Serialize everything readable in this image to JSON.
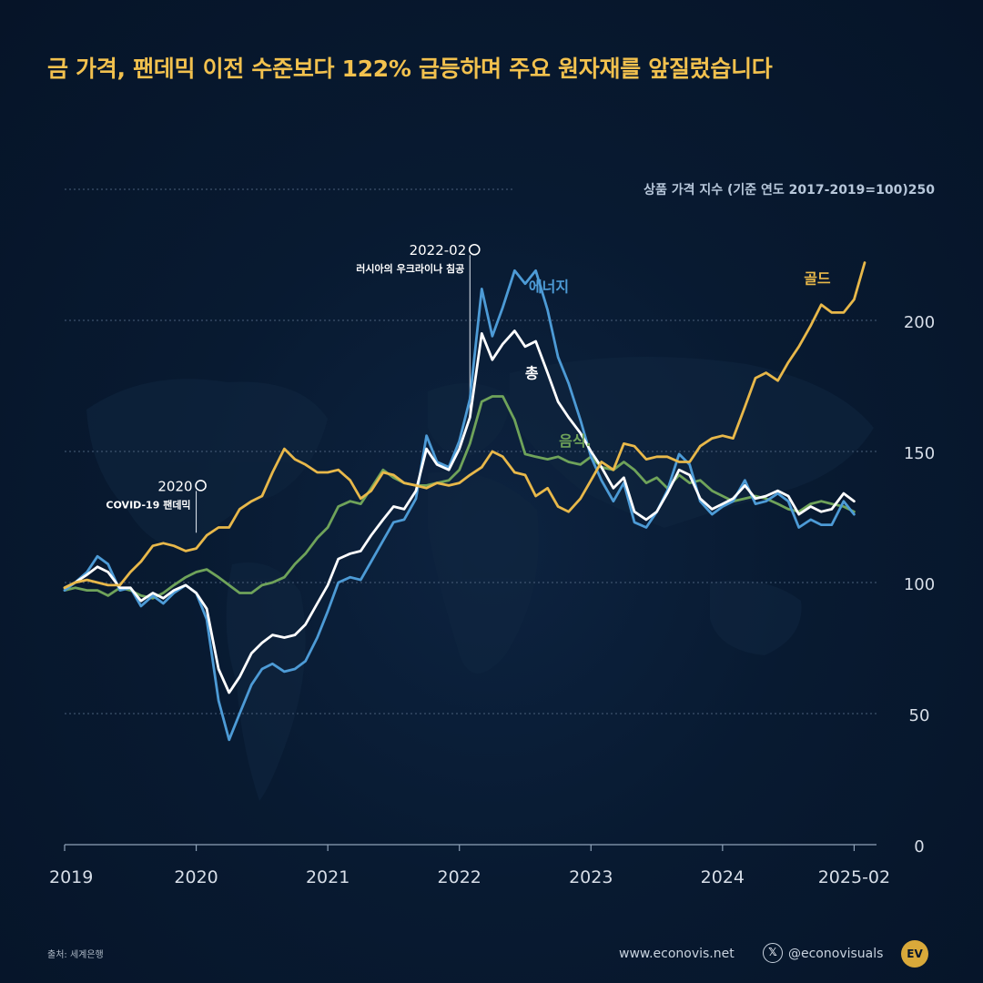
{
  "title": "금 가격, 팬데믹 이전 수준보다 122% 급등하며 주요 원자재를 앞질렀습니다",
  "footer": {
    "source": "출처: 세계은행",
    "website": "www.econovis.net",
    "handle": "@econovisuals",
    "logo_text": "EV",
    "x_icon": "x-logo-icon"
  },
  "chart_data": {
    "type": "line",
    "ylabel": "상품 가격 지수 (기준 연도 2017-2019=100)",
    "y_top_label": "250",
    "ylim": [
      0,
      250
    ],
    "yticks": [
      0,
      50,
      100,
      150,
      200
    ],
    "xlim": [
      2019.0,
      2025.17
    ],
    "xticks": [
      2019,
      2020,
      2021,
      2022,
      2023,
      2024
    ],
    "xtick_labels": [
      "2019",
      "2020",
      "2021",
      "2022",
      "2023",
      "2024",
      "2025-02"
    ],
    "xtick_values": [
      2019,
      2020,
      2021,
      2022,
      2023,
      2024,
      2025
    ],
    "grid": true,
    "colors": {
      "gold": "#e8b84a",
      "energy": "#4d9bd6",
      "total": "#ffffff",
      "food": "#6fa35a",
      "grid": "#4a5f7a",
      "axis_text": "#d7dee8"
    },
    "annotations": [
      {
        "x": 2020.0,
        "year_label": "2020",
        "text": "COVID-19 팬데믹",
        "y_text_top": 137
      },
      {
        "x": 2022.08,
        "year_label": "2022-02",
        "text": "러시아의 우크라이나 침공",
        "y_text_top": 227
      }
    ],
    "series": [
      {
        "key": "gold",
        "name": "골드",
        "label_x": 2024.72,
        "label_y": 214,
        "points": [
          [
            2019.0,
            98
          ],
          [
            2019.08,
            100
          ],
          [
            2019.17,
            101
          ],
          [
            2019.25,
            100
          ],
          [
            2019.33,
            99
          ],
          [
            2019.42,
            99
          ],
          [
            2019.5,
            104
          ],
          [
            2019.58,
            108
          ],
          [
            2019.67,
            114
          ],
          [
            2019.75,
            115
          ],
          [
            2019.83,
            114
          ],
          [
            2019.92,
            112
          ],
          [
            2020.0,
            113
          ],
          [
            2020.08,
            118
          ],
          [
            2020.17,
            121
          ],
          [
            2020.25,
            121
          ],
          [
            2020.33,
            128
          ],
          [
            2020.42,
            131
          ],
          [
            2020.5,
            133
          ],
          [
            2020.58,
            142
          ],
          [
            2020.67,
            151
          ],
          [
            2020.75,
            147
          ],
          [
            2020.83,
            145
          ],
          [
            2020.92,
            142
          ],
          [
            2021.0,
            142
          ],
          [
            2021.08,
            143
          ],
          [
            2021.17,
            139
          ],
          [
            2021.25,
            132
          ],
          [
            2021.33,
            135
          ],
          [
            2021.42,
            142
          ],
          [
            2021.5,
            141
          ],
          [
            2021.58,
            138
          ],
          [
            2021.67,
            137
          ],
          [
            2021.75,
            136
          ],
          [
            2021.83,
            138
          ],
          [
            2021.92,
            137
          ],
          [
            2022.0,
            138
          ],
          [
            2022.08,
            141
          ],
          [
            2022.17,
            144
          ],
          [
            2022.25,
            150
          ],
          [
            2022.33,
            148
          ],
          [
            2022.42,
            142
          ],
          [
            2022.5,
            141
          ],
          [
            2022.58,
            133
          ],
          [
            2022.67,
            136
          ],
          [
            2022.75,
            129
          ],
          [
            2022.83,
            127
          ],
          [
            2022.92,
            132
          ],
          [
            2023.0,
            139
          ],
          [
            2023.08,
            146
          ],
          [
            2023.17,
            143
          ],
          [
            2023.25,
            153
          ],
          [
            2023.33,
            152
          ],
          [
            2023.42,
            147
          ],
          [
            2023.5,
            148
          ],
          [
            2023.58,
            148
          ],
          [
            2023.67,
            146
          ],
          [
            2023.75,
            146
          ],
          [
            2023.83,
            152
          ],
          [
            2023.92,
            155
          ],
          [
            2024.0,
            156
          ],
          [
            2024.08,
            155
          ],
          [
            2024.17,
            167
          ],
          [
            2024.25,
            178
          ],
          [
            2024.33,
            180
          ],
          [
            2024.42,
            177
          ],
          [
            2024.5,
            184
          ],
          [
            2024.58,
            190
          ],
          [
            2024.67,
            198
          ],
          [
            2024.75,
            206
          ],
          [
            2024.83,
            203
          ],
          [
            2024.92,
            203
          ],
          [
            2025.0,
            208
          ],
          [
            2025.08,
            222
          ]
        ]
      },
      {
        "key": "energy",
        "name": "에너지",
        "label_x": 2022.68,
        "label_y": 211,
        "points": [
          [
            2019.0,
            97
          ],
          [
            2019.08,
            100
          ],
          [
            2019.17,
            104
          ],
          [
            2019.25,
            110
          ],
          [
            2019.33,
            107
          ],
          [
            2019.42,
            97
          ],
          [
            2019.5,
            98
          ],
          [
            2019.58,
            91
          ],
          [
            2019.67,
            95
          ],
          [
            2019.75,
            92
          ],
          [
            2019.83,
            96
          ],
          [
            2019.92,
            99
          ],
          [
            2020.0,
            96
          ],
          [
            2020.08,
            86
          ],
          [
            2020.17,
            55
          ],
          [
            2020.25,
            40
          ],
          [
            2020.33,
            50
          ],
          [
            2020.42,
            61
          ],
          [
            2020.5,
            67
          ],
          [
            2020.58,
            69
          ],
          [
            2020.67,
            66
          ],
          [
            2020.75,
            67
          ],
          [
            2020.83,
            70
          ],
          [
            2020.92,
            79
          ],
          [
            2021.0,
            89
          ],
          [
            2021.08,
            100
          ],
          [
            2021.17,
            102
          ],
          [
            2021.25,
            101
          ],
          [
            2021.33,
            108
          ],
          [
            2021.42,
            116
          ],
          [
            2021.5,
            123
          ],
          [
            2021.58,
            124
          ],
          [
            2021.67,
            132
          ],
          [
            2021.75,
            156
          ],
          [
            2021.83,
            146
          ],
          [
            2021.92,
            144
          ],
          [
            2022.0,
            154
          ],
          [
            2022.08,
            170
          ],
          [
            2022.17,
            212
          ],
          [
            2022.25,
            194
          ],
          [
            2022.33,
            205
          ],
          [
            2022.42,
            219
          ],
          [
            2022.5,
            214
          ],
          [
            2022.58,
            219
          ],
          [
            2022.67,
            204
          ],
          [
            2022.75,
            186
          ],
          [
            2022.83,
            176
          ],
          [
            2022.92,
            162
          ],
          [
            2023.0,
            148
          ],
          [
            2023.08,
            139
          ],
          [
            2023.17,
            131
          ],
          [
            2023.25,
            138
          ],
          [
            2023.33,
            123
          ],
          [
            2023.42,
            121
          ],
          [
            2023.5,
            127
          ],
          [
            2023.58,
            135
          ],
          [
            2023.67,
            149
          ],
          [
            2023.75,
            145
          ],
          [
            2023.83,
            131
          ],
          [
            2023.92,
            126
          ],
          [
            2024.0,
            129
          ],
          [
            2024.08,
            131
          ],
          [
            2024.17,
            139
          ],
          [
            2024.25,
            130
          ],
          [
            2024.33,
            131
          ],
          [
            2024.42,
            134
          ],
          [
            2024.5,
            131
          ],
          [
            2024.58,
            121
          ],
          [
            2024.67,
            124
          ],
          [
            2024.75,
            122
          ],
          [
            2024.83,
            122
          ],
          [
            2024.92,
            131
          ],
          [
            2025.0,
            126
          ]
        ]
      },
      {
        "key": "total",
        "name": "총",
        "label_x": 2022.55,
        "label_y": 178,
        "points": [
          [
            2019.0,
            98
          ],
          [
            2019.08,
            100
          ],
          [
            2019.17,
            103
          ],
          [
            2019.25,
            106
          ],
          [
            2019.33,
            104
          ],
          [
            2019.42,
            98
          ],
          [
            2019.5,
            98
          ],
          [
            2019.58,
            93
          ],
          [
            2019.67,
            96
          ],
          [
            2019.75,
            94
          ],
          [
            2019.83,
            97
          ],
          [
            2019.92,
            99
          ],
          [
            2020.0,
            96
          ],
          [
            2020.08,
            90
          ],
          [
            2020.17,
            67
          ],
          [
            2020.25,
            58
          ],
          [
            2020.33,
            64
          ],
          [
            2020.42,
            73
          ],
          [
            2020.5,
            77
          ],
          [
            2020.58,
            80
          ],
          [
            2020.67,
            79
          ],
          [
            2020.75,
            80
          ],
          [
            2020.83,
            84
          ],
          [
            2020.92,
            92
          ],
          [
            2021.0,
            99
          ],
          [
            2021.08,
            109
          ],
          [
            2021.17,
            111
          ],
          [
            2021.25,
            112
          ],
          [
            2021.33,
            118
          ],
          [
            2021.42,
            124
          ],
          [
            2021.5,
            129
          ],
          [
            2021.58,
            128
          ],
          [
            2021.67,
            135
          ],
          [
            2021.75,
            151
          ],
          [
            2021.83,
            145
          ],
          [
            2021.92,
            143
          ],
          [
            2022.0,
            151
          ],
          [
            2022.08,
            163
          ],
          [
            2022.17,
            195
          ],
          [
            2022.25,
            185
          ],
          [
            2022.33,
            191
          ],
          [
            2022.42,
            196
          ],
          [
            2022.5,
            190
          ],
          [
            2022.58,
            192
          ],
          [
            2022.67,
            180
          ],
          [
            2022.75,
            169
          ],
          [
            2022.83,
            163
          ],
          [
            2022.92,
            157
          ],
          [
            2023.0,
            150
          ],
          [
            2023.08,
            144
          ],
          [
            2023.17,
            136
          ],
          [
            2023.25,
            140
          ],
          [
            2023.33,
            127
          ],
          [
            2023.42,
            124
          ],
          [
            2023.5,
            127
          ],
          [
            2023.58,
            134
          ],
          [
            2023.67,
            143
          ],
          [
            2023.75,
            141
          ],
          [
            2023.83,
            132
          ],
          [
            2023.92,
            128
          ],
          [
            2024.0,
            130
          ],
          [
            2024.08,
            132
          ],
          [
            2024.17,
            137
          ],
          [
            2024.25,
            132
          ],
          [
            2024.33,
            133
          ],
          [
            2024.42,
            135
          ],
          [
            2024.5,
            133
          ],
          [
            2024.58,
            126
          ],
          [
            2024.67,
            129
          ],
          [
            2024.75,
            127
          ],
          [
            2024.83,
            128
          ],
          [
            2024.92,
            134
          ],
          [
            2025.0,
            131
          ]
        ]
      },
      {
        "key": "food",
        "name": "음식.",
        "label_x": 2022.88,
        "label_y": 152,
        "points": [
          [
            2019.0,
            97
          ],
          [
            2019.08,
            98
          ],
          [
            2019.17,
            97
          ],
          [
            2019.25,
            97
          ],
          [
            2019.33,
            95
          ],
          [
            2019.42,
            98
          ],
          [
            2019.5,
            97
          ],
          [
            2019.58,
            95
          ],
          [
            2019.67,
            94
          ],
          [
            2019.75,
            96
          ],
          [
            2019.83,
            99
          ],
          [
            2019.92,
            102
          ],
          [
            2020.0,
            104
          ],
          [
            2020.08,
            105
          ],
          [
            2020.17,
            102
          ],
          [
            2020.25,
            99
          ],
          [
            2020.33,
            96
          ],
          [
            2020.42,
            96
          ],
          [
            2020.5,
            99
          ],
          [
            2020.58,
            100
          ],
          [
            2020.67,
            102
          ],
          [
            2020.75,
            107
          ],
          [
            2020.83,
            111
          ],
          [
            2020.92,
            117
          ],
          [
            2021.0,
            121
          ],
          [
            2021.08,
            129
          ],
          [
            2021.17,
            131
          ],
          [
            2021.25,
            130
          ],
          [
            2021.33,
            136
          ],
          [
            2021.42,
            143
          ],
          [
            2021.5,
            140
          ],
          [
            2021.58,
            138
          ],
          [
            2021.67,
            137
          ],
          [
            2021.75,
            137
          ],
          [
            2021.83,
            138
          ],
          [
            2021.92,
            139
          ],
          [
            2022.0,
            143
          ],
          [
            2022.08,
            153
          ],
          [
            2022.17,
            169
          ],
          [
            2022.25,
            171
          ],
          [
            2022.33,
            171
          ],
          [
            2022.42,
            162
          ],
          [
            2022.5,
            149
          ],
          [
            2022.58,
            148
          ],
          [
            2022.67,
            147
          ],
          [
            2022.75,
            148
          ],
          [
            2022.83,
            146
          ],
          [
            2022.92,
            145
          ],
          [
            2023.0,
            148
          ],
          [
            2023.08,
            144
          ],
          [
            2023.17,
            143
          ],
          [
            2023.25,
            146
          ],
          [
            2023.33,
            143
          ],
          [
            2023.42,
            138
          ],
          [
            2023.5,
            140
          ],
          [
            2023.58,
            136
          ],
          [
            2023.67,
            141
          ],
          [
            2023.75,
            138
          ],
          [
            2023.83,
            139
          ],
          [
            2023.92,
            135
          ],
          [
            2024.0,
            133
          ],
          [
            2024.08,
            131
          ],
          [
            2024.17,
            132
          ],
          [
            2024.25,
            133
          ],
          [
            2024.33,
            132
          ],
          [
            2024.42,
            130
          ],
          [
            2024.5,
            128
          ],
          [
            2024.58,
            127
          ],
          [
            2024.67,
            130
          ],
          [
            2024.75,
            131
          ],
          [
            2024.83,
            130
          ],
          [
            2024.92,
            129
          ],
          [
            2025.0,
            127
          ]
        ]
      }
    ]
  }
}
